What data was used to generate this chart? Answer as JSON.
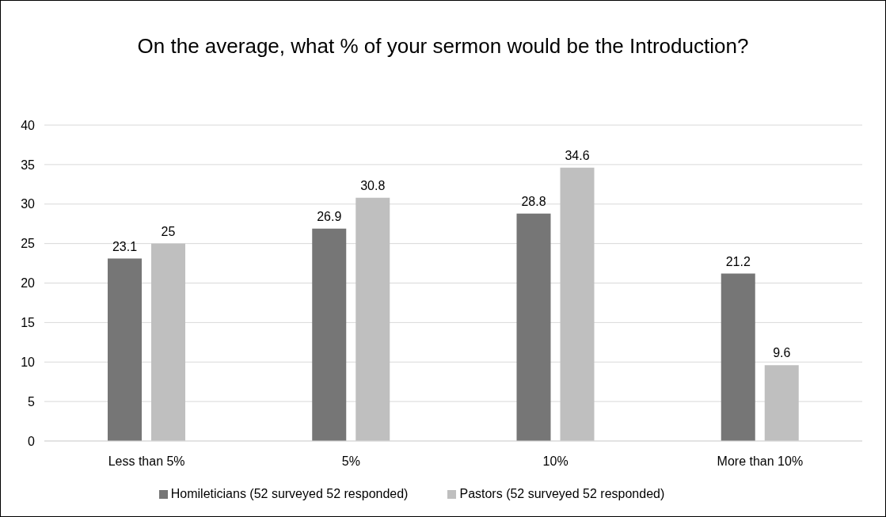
{
  "chart_data": {
    "type": "bar",
    "title": "On the average, what % of your sermon would be the Introduction?",
    "categories": [
      "Less than 5%",
      "5%",
      "10%",
      "More than 10%"
    ],
    "series": [
      {
        "name": "Homileticians (52 surveyed 52 responded)",
        "color": "#767676",
        "values": [
          23.1,
          26.9,
          28.8,
          21.2
        ]
      },
      {
        "name": "Pastors (52 surveyed 52 responded)",
        "color": "#bfbfbf",
        "values": [
          25,
          30.8,
          34.6,
          9.6
        ]
      }
    ],
    "ylim": [
      0,
      40
    ],
    "yticks": [
      0,
      5,
      10,
      15,
      20,
      25,
      30,
      35,
      40
    ],
    "grid": "y",
    "legend": "bottom",
    "data_labels": true
  }
}
